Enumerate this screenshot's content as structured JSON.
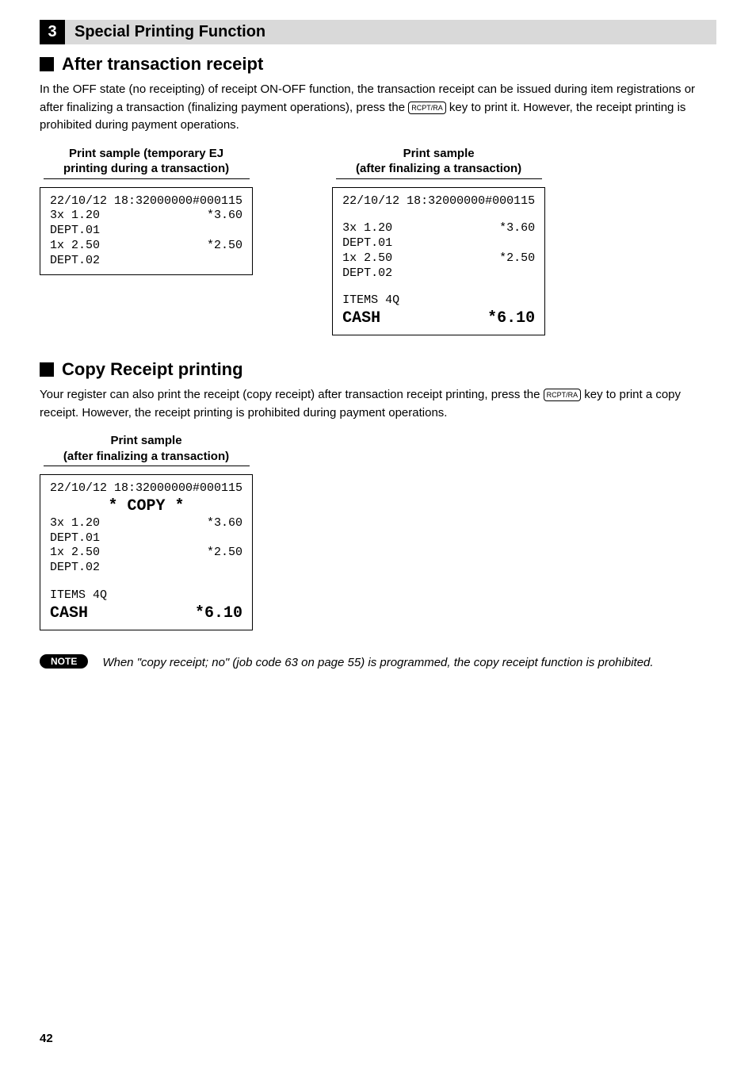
{
  "section": {
    "number": "3",
    "title": "Special Printing Function"
  },
  "sub1": {
    "title": "After transaction receipt",
    "para1_a": "In the OFF state (no receipting) of receipt ON-OFF function, the transaction receipt can be issued during item registrations or after finalizing a transaction (finalizing payment operations), press the ",
    "para1_key": "RCPT/RA",
    "para1_b": " key to print it. However, the receipt printing is prohibited during payment operations."
  },
  "sample_left_heading": "Print sample (temporary EJ\nprinting during a transaction)",
  "sample_right_heading": "Print sample\n(after finalizing a transaction)",
  "receipt1": {
    "r1_l": "22/10/12 18:32",
    "r1_r": "000000#000115",
    "r2_l": "3x 1.20",
    "r2_r": "*3.60",
    "r3_l": "DEPT.01",
    "r4_l": "1x 2.50",
    "r4_r": "*2.50",
    "r5_l": "DEPT.02"
  },
  "receipt2": {
    "r1_l": "22/10/12 18:32",
    "r1_r": "000000#000115",
    "r2_l": "3x 1.20",
    "r2_r": "*3.60",
    "r3_l": "DEPT.01",
    "r4_l": "1x 2.50",
    "r4_r": "*2.50",
    "r5_l": "DEPT.02",
    "r6_l": "ITEMS 4Q",
    "r7_l": "CASH",
    "r7_r": "*6.10"
  },
  "sub2": {
    "title": "Copy Receipt printing",
    "para_a": "Your register can also print the receipt (copy receipt) after transaction receipt printing, press the ",
    "para_key": "RCPT/RA",
    "para_b": " key to print a copy receipt. However, the receipt printing is prohibited during payment operations."
  },
  "sample_copy_heading": "Print sample\n(after finalizing a transaction)",
  "receipt3": {
    "r1_l": "22/10/12 18:32",
    "r1_r": "000000#000115",
    "copy_line": "* COPY *",
    "r2_l": "3x 1.20",
    "r2_r": "*3.60",
    "r3_l": "DEPT.01",
    "r4_l": "1x 2.50",
    "r4_r": "*2.50",
    "r5_l": "DEPT.02",
    "r6_l": "ITEMS 4Q",
    "r7_l": "CASH",
    "r7_r": "*6.10"
  },
  "note": {
    "label": "NOTE",
    "text": "When \"copy receipt; no\" (job code 63 on page 55) is programmed, the copy receipt function is prohibited."
  },
  "page_number": "42"
}
